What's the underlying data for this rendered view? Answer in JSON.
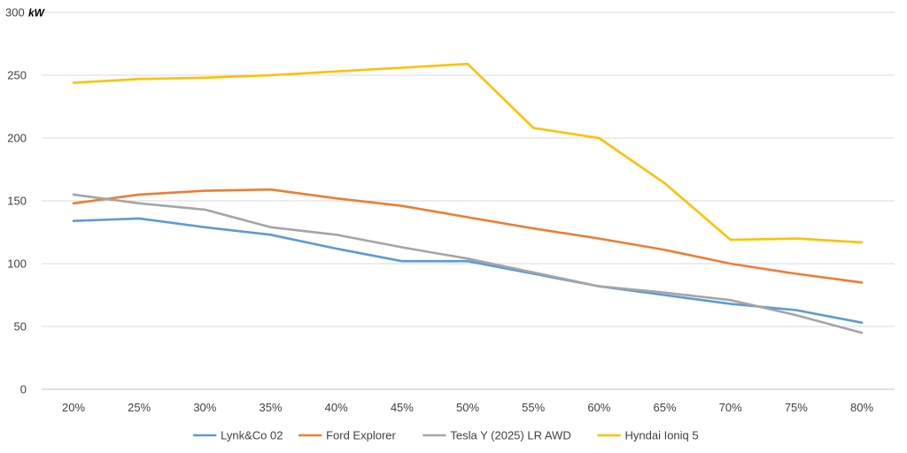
{
  "chart_data": {
    "type": "line",
    "title": "",
    "xlabel": "",
    "ylabel": "",
    "y_unit": "kW",
    "ylim": [
      0,
      300
    ],
    "yticks": [
      0,
      50,
      100,
      150,
      200,
      250,
      300
    ],
    "grid": true,
    "legend_position": "bottom",
    "categories": [
      "20%",
      "25%",
      "30%",
      "35%",
      "40%",
      "45%",
      "50%",
      "55%",
      "60%",
      "65%",
      "70%",
      "75%",
      "80%"
    ],
    "series": [
      {
        "name": "Lynk&Co 02",
        "color": "#5b9bd5",
        "values": [
          134,
          136,
          129,
          123,
          112,
          102,
          102,
          92,
          82,
          75,
          68,
          63,
          53
        ]
      },
      {
        "name": "Ford Explorer",
        "color": "#ed7d31",
        "values": [
          148,
          155,
          158,
          159,
          152,
          146,
          137,
          128,
          120,
          111,
          100,
          92,
          85
        ]
      },
      {
        "name": "Tesla Y (2025) LR AWD",
        "color": "#a5a5a5",
        "values": [
          155,
          148,
          143,
          129,
          123,
          113,
          104,
          93,
          82,
          77,
          71,
          59,
          45
        ]
      },
      {
        "name": "Hyndai Ioniq 5",
        "color": "#ffc000",
        "values": [
          244,
          247,
          248,
          250,
          253,
          256,
          259,
          208,
          200,
          164,
          119,
          120,
          117
        ]
      }
    ]
  }
}
